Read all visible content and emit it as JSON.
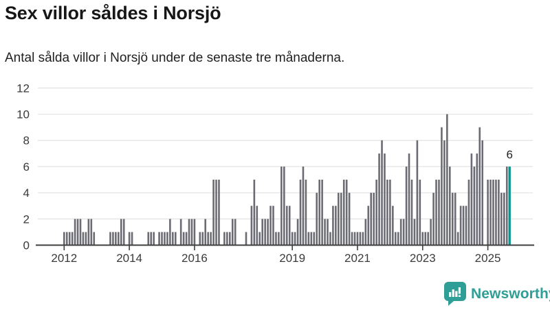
{
  "page": {
    "background": "#ffffff"
  },
  "header": {
    "title": "Sex villor såldes i Norsjö",
    "subtitle": "Antal sålda villor i Norsjö under de senaste tre månaderna."
  },
  "chart_data": {
    "type": "bar",
    "title": "Sex villor såldes i Norsjö",
    "subtitle": "Antal sålda villor i Norsjö under de senaste tre månaderna.",
    "frequency": "monthly",
    "start_period": "2012-01",
    "end_period": "2025-09",
    "values": [
      1,
      1,
      1,
      1,
      2,
      2,
      2,
      1,
      1,
      2,
      2,
      1,
      0,
      0,
      0,
      0,
      0,
      1,
      1,
      1,
      1,
      2,
      2,
      0,
      1,
      1,
      0,
      0,
      0,
      0,
      0,
      1,
      1,
      1,
      0,
      1,
      1,
      1,
      1,
      2,
      1,
      1,
      0,
      2,
      1,
      1,
      2,
      2,
      2,
      0,
      1,
      1,
      2,
      1,
      1,
      5,
      5,
      5,
      0,
      1,
      1,
      1,
      2,
      2,
      0,
      0,
      0,
      1,
      0,
      3,
      5,
      3,
      1,
      2,
      2,
      2,
      3,
      3,
      1,
      1,
      6,
      6,
      3,
      3,
      1,
      1,
      2,
      5,
      6,
      5,
      1,
      1,
      1,
      4,
      5,
      5,
      2,
      2,
      1,
      3,
      3,
      4,
      4,
      5,
      5,
      4,
      1,
      1,
      1,
      1,
      1,
      2,
      3,
      4,
      4,
      5,
      7,
      8,
      7,
      5,
      5,
      3,
      1,
      1,
      2,
      2,
      6,
      7,
      5,
      2,
      8,
      5,
      1,
      1,
      1,
      2,
      4,
      5,
      5,
      9,
      8,
      10,
      6,
      4,
      4,
      1,
      3,
      3,
      3,
      5,
      7,
      6,
      7,
      9,
      8,
      0,
      5,
      5,
      5,
      5,
      5,
      4,
      4,
      6,
      6
    ],
    "yticks": [
      0,
      2,
      4,
      6,
      8,
      10,
      12
    ],
    "ylim": [
      0,
      12.4
    ],
    "xticks": [
      "2012",
      "2014",
      "2016",
      "2019",
      "2021",
      "2023",
      "2025"
    ],
    "xtick_years": [
      2012,
      2014,
      2016,
      2019,
      2021,
      2023,
      2025
    ],
    "grid": true,
    "legend": "none",
    "bar_color": "#6b6b73",
    "highlight_color": "#0a968e",
    "highlight": {
      "period": "2025-09",
      "value": 6,
      "label": "6"
    },
    "axis_color": "#3f3f3f",
    "grid_color": "#e4e4e4",
    "label_color": "#3a3a3a",
    "annotation_color": "#222222"
  },
  "branding": {
    "name": "Newsworthy",
    "color": "#2f9e96",
    "icon": "newsworthy-chart-speech-bubble-icon",
    "icon_bar_color": "#ffffff"
  }
}
